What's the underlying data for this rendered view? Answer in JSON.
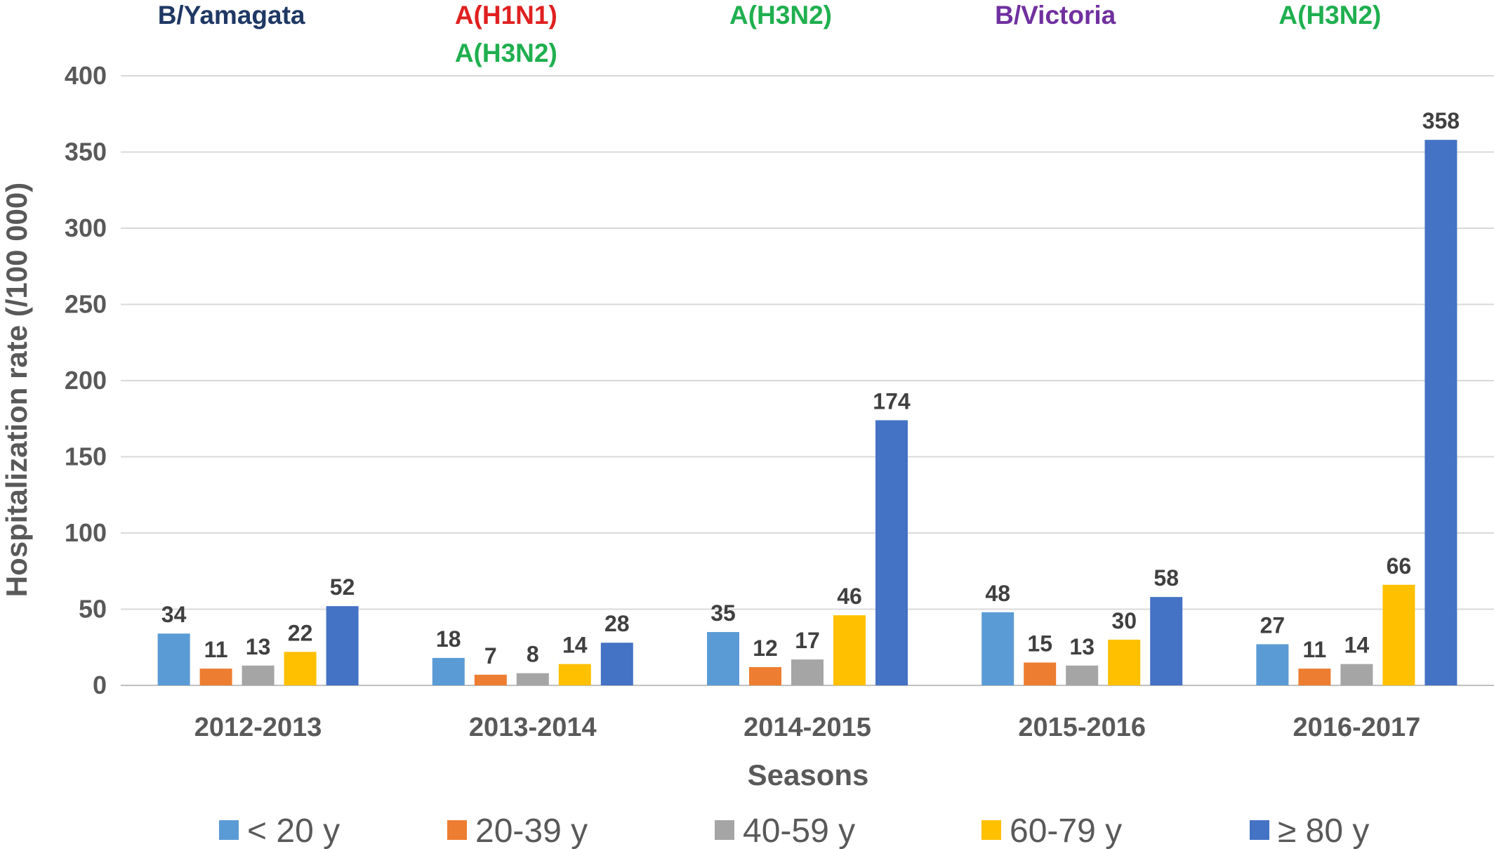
{
  "chart_data": {
    "type": "bar",
    "xlabel": "Seasons",
    "ylabel": "Hospitalization rate (/100 000)",
    "ylim": [
      0,
      400
    ],
    "yticks": [
      0,
      50,
      100,
      150,
      200,
      250,
      300,
      350,
      400
    ],
    "grid": true,
    "legend_position": "bottom",
    "categories": [
      "2012-2013",
      "2013-2014",
      "2014-2015",
      "2015-2016",
      "2016-2017"
    ],
    "series": [
      {
        "name": "< 20 y",
        "color": "#5B9BD5",
        "values": [
          34,
          18,
          35,
          48,
          27
        ]
      },
      {
        "name": "20-39 y",
        "color": "#ED7D31",
        "values": [
          11,
          7,
          12,
          15,
          11
        ]
      },
      {
        "name": "40-59 y",
        "color": "#A5A5A5",
        "values": [
          13,
          8,
          17,
          13,
          14
        ]
      },
      {
        "name": "60-79 y",
        "color": "#FFC000",
        "values": [
          22,
          14,
          46,
          30,
          66
        ]
      },
      {
        "name": "≥ 80 y",
        "color": "#4472C4",
        "values": [
          52,
          28,
          174,
          58,
          358
        ]
      }
    ],
    "annotations": [
      [
        {
          "text": "B/Yamagata",
          "color": "#1F3864"
        }
      ],
      [
        {
          "text": "A(H1N1)",
          "color": "#E02020"
        },
        {
          "text": "A(H3N2)",
          "color": "#1FAF4F"
        }
      ],
      [
        {
          "text": "A(H3N2)",
          "color": "#1FAF4F"
        }
      ],
      [
        {
          "text": "B/Victoria",
          "color": "#7030A0"
        }
      ],
      [
        {
          "text": "A(H3N2)",
          "color": "#1FAF4F"
        }
      ]
    ]
  }
}
